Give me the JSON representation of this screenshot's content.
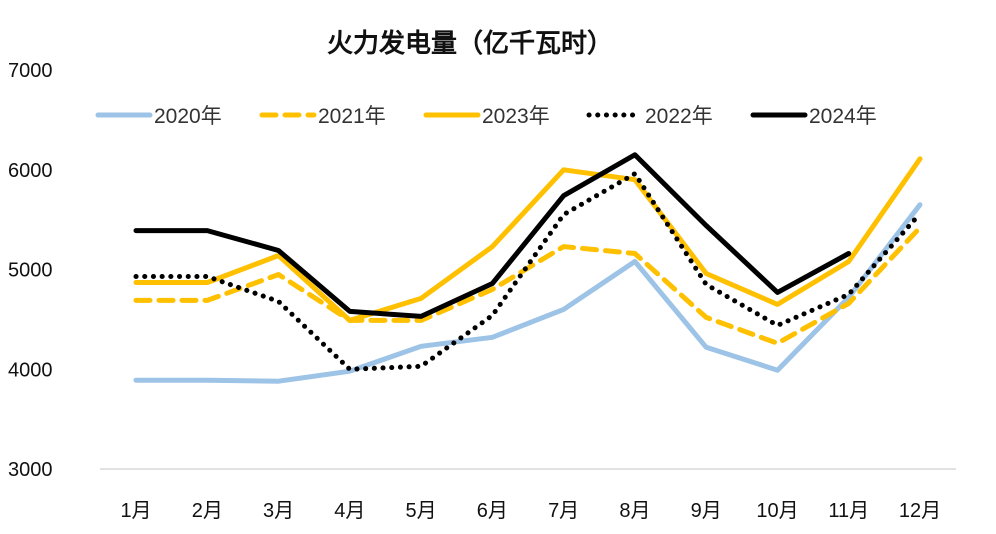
{
  "chart_data": {
    "type": "line",
    "title": "火力发电量（亿千瓦时）",
    "xlabel": "",
    "ylabel": "",
    "categories": [
      "1月",
      "2月",
      "3月",
      "4月",
      "5月",
      "6月",
      "7月",
      "8月",
      "9月",
      "10月",
      "11月",
      "12月"
    ],
    "ylim": [
      3000,
      7000
    ],
    "yticks": [
      "3000",
      "4000",
      "5000",
      "6000",
      "7000"
    ],
    "grid": false,
    "legend_position": "top",
    "series": [
      {
        "name": "2020年",
        "color": "#9DC3E6",
        "style": "solid",
        "values": [
          3890,
          3890,
          3880,
          3980,
          4230,
          4320,
          4600,
          5080,
          4220,
          3990,
          4720,
          5650
        ]
      },
      {
        "name": "2021年",
        "color": "#FFC000",
        "style": "dashed",
        "values": [
          4690,
          4690,
          4950,
          4490,
          4490,
          4800,
          5230,
          5160,
          4520,
          4260,
          4660,
          5420
        ]
      },
      {
        "name": "2023年",
        "color": "#FFC000",
        "style": "solid",
        "values": [
          4870,
          4870,
          5140,
          4490,
          4710,
          5230,
          6000,
          5900,
          4960,
          4650,
          5080,
          6110
        ]
      },
      {
        "name": "2022年",
        "color": "#000000",
        "style": "dotted",
        "values": [
          4930,
          4930,
          4680,
          4000,
          4030,
          4540,
          5550,
          5960,
          4850,
          4440,
          4750,
          5560
        ]
      },
      {
        "name": "2024年",
        "color": "#000000",
        "style": "solid",
        "values": [
          5390,
          5390,
          5190,
          4580,
          4530,
          4860,
          5740,
          6150,
          5440,
          4770,
          5160,
          null
        ]
      }
    ]
  }
}
